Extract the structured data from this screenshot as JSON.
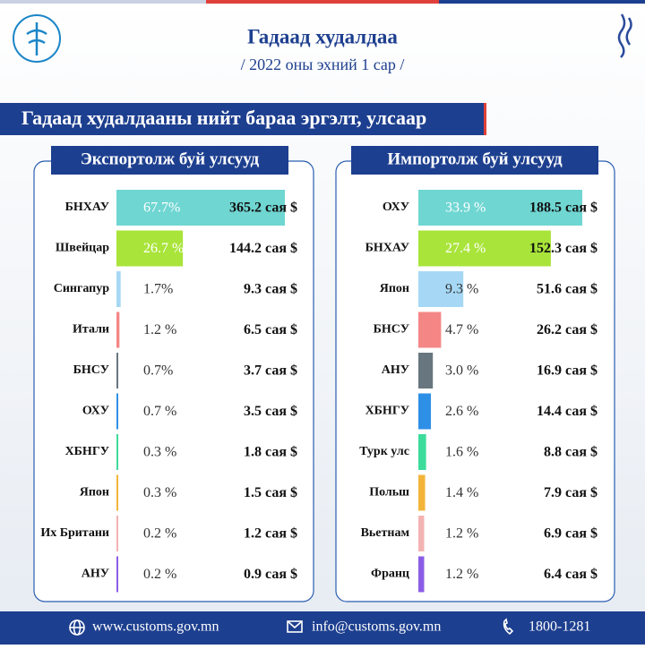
{
  "header": {
    "title": "Гадаад худалдаа",
    "subtitle": "/ 2022 оны эхний  1 сар /"
  },
  "banner": "Гадаад худалдааны нийт бараа эргэлт, улсаар",
  "chart_data": [
    {
      "type": "bar",
      "title": "Экспортолж буй улсууд",
      "categories": [
        "БНХАУ",
        "Швейцар",
        "Сингапур",
        "Итали",
        "БНСУ",
        "ОХУ",
        "ХБНГУ",
        "Япон",
        "Их Британи",
        "АНУ"
      ],
      "values": [
        67.7,
        26.7,
        1.7,
        1.2,
        0.7,
        0.7,
        0.3,
        0.3,
        0.2,
        0.2
      ],
      "value_labels": [
        "67.7%",
        "26.7 %",
        "1.7%",
        "1.2 %",
        "0.7%",
        "0.7 %",
        "0.3 %",
        "0.3 %",
        "0.2 %",
        "0.2 %"
      ],
      "amount_labels": [
        "365.2 сая $",
        "144.2 сая $",
        "9.3 сая $",
        "6.5 сая $",
        "3.7 сая $",
        "3.5 сая $",
        "1.8 сая $",
        "1.5 сая $",
        "1.2 сая $",
        "0.9 сая $"
      ],
      "colors": [
        "#6fd6d2",
        "#a9e43a",
        "#a6d8f5",
        "#f48686",
        "#68767f",
        "#2e8fe6",
        "#3ddc9c",
        "#f2b53a",
        "#f4b3b3",
        "#8b5de6"
      ]
    },
    {
      "type": "bar",
      "title": "Импортолж буй улсууд",
      "categories": [
        "ОХУ",
        "БНХАУ",
        "Япон",
        "БНСУ",
        "АНУ",
        "ХБНГУ",
        "Турк улс",
        "Польш",
        "Вьетнам",
        "Франц"
      ],
      "values": [
        33.9,
        27.4,
        9.3,
        4.7,
        3.0,
        2.6,
        1.6,
        1.4,
        1.2,
        1.2
      ],
      "value_labels": [
        "33.9 %",
        "27.4 %",
        "9.3 %",
        "4.7 %",
        "3.0 %",
        "2.6 %",
        "1.6 %",
        "1.4 %",
        "1.2 %",
        "1.2 %"
      ],
      "amount_labels": [
        "188.5 сая $",
        "152.3 сая $",
        "51.6 сая $",
        "26.2 сая $",
        "16.9 сая $",
        "14.4 сая $",
        "8.8 сая $",
        "7.9 сая $",
        "6.9 сая $",
        "6.4 сая $"
      ],
      "colors": [
        "#6fd6d2",
        "#a9e43a",
        "#a6d8f5",
        "#f48686",
        "#68767f",
        "#2e8fe6",
        "#3ddc9c",
        "#f2b53a",
        "#f4b3b3",
        "#8b5de6"
      ]
    }
  ],
  "footer": {
    "website": "www.customs.gov.mn",
    "email": "info@customs.gov.mn",
    "phone": "1800-1281"
  }
}
